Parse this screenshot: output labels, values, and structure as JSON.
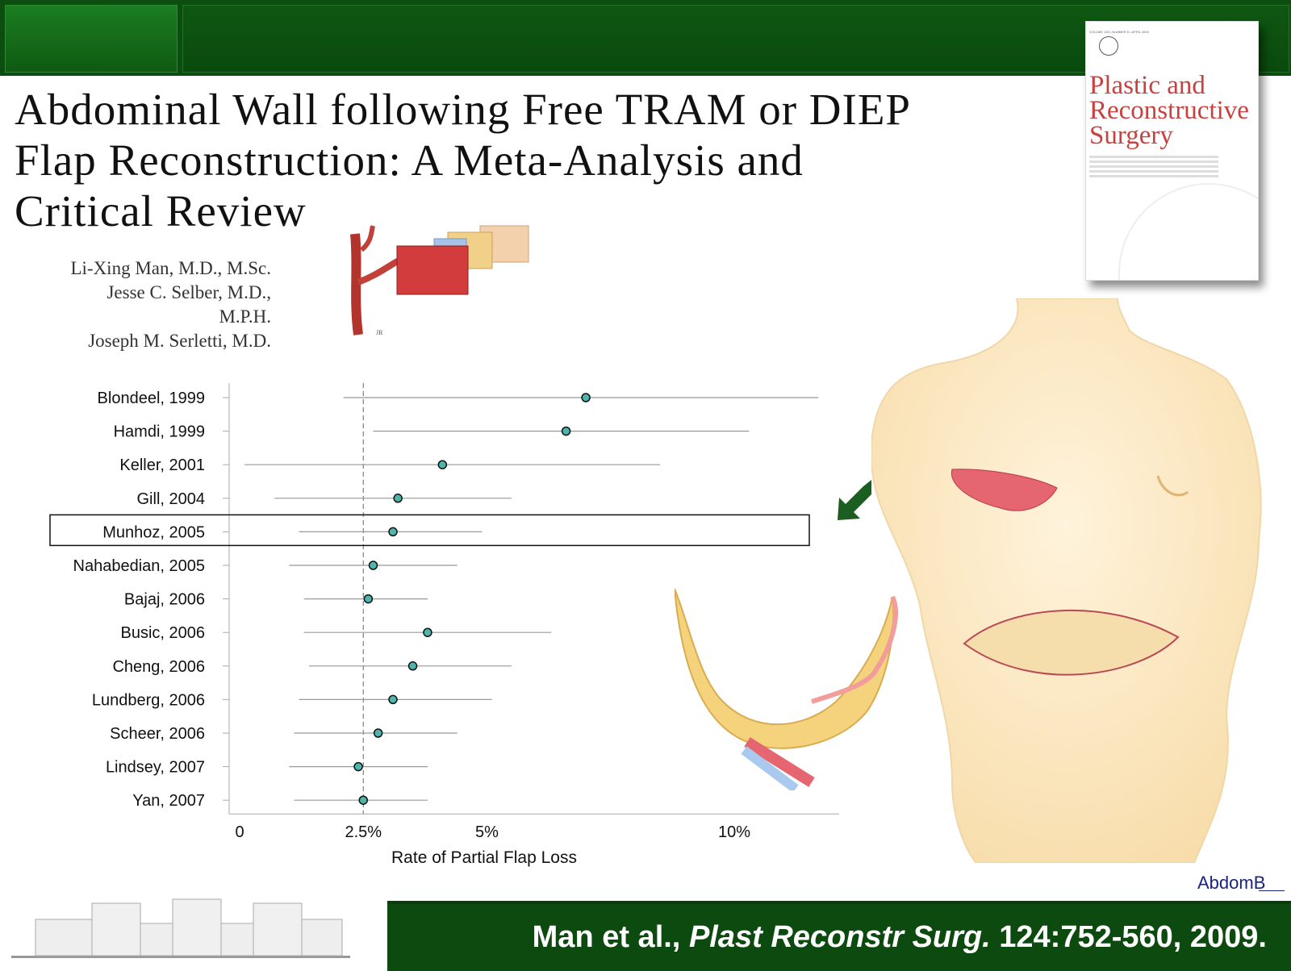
{
  "title": {
    "line1": "Abdominal Wall following Free TRAM or DIEP",
    "line2": "Flap Reconstruction: A Meta-Analysis and",
    "line3": "Critical Review"
  },
  "authors": [
    "Li-Xing Man, M.D., M.Sc.",
    "Jesse C. Selber, M.D.,",
    "M.P.H.",
    "Joseph M. Serletti, M.D."
  ],
  "journal_cover": {
    "name_lines": [
      "Plastic and",
      "Reconstructive",
      "Surgery"
    ],
    "meta": "VOLUME 105 • NUMBER 5 • APRIL 2000"
  },
  "chart_data": {
    "type": "scatter",
    "xlabel": "Rate of Partial Flap Loss",
    "xticks": [
      "0",
      "2.5%",
      "5%",
      "10%"
    ],
    "reference_line": 2.5,
    "highlighted_study": "Munhoz, 2005",
    "studies": [
      {
        "label": "Blondeel, 1999",
        "estimate": 7.0,
        "ci": [
          2.1,
          11.7
        ]
      },
      {
        "label": "Hamdi, 1999",
        "estimate": 6.6,
        "ci": [
          2.7,
          10.3
        ]
      },
      {
        "label": "Keller, 2001",
        "estimate": 4.1,
        "ci": [
          0.1,
          8.5
        ]
      },
      {
        "label": "Gill, 2004",
        "estimate": 3.2,
        "ci": [
          0.7,
          5.5
        ]
      },
      {
        "label": "Munhoz, 2005",
        "estimate": 3.1,
        "ci": [
          1.2,
          4.9
        ]
      },
      {
        "label": "Nahabedian, 2005",
        "estimate": 2.7,
        "ci": [
          1.0,
          4.4
        ]
      },
      {
        "label": "Bajaj, 2006",
        "estimate": 2.6,
        "ci": [
          1.3,
          3.8
        ]
      },
      {
        "label": "Busic, 2006",
        "estimate": 3.8,
        "ci": [
          1.3,
          6.3
        ]
      },
      {
        "label": "Cheng, 2006",
        "estimate": 3.5,
        "ci": [
          1.4,
          5.5
        ]
      },
      {
        "label": "Lundberg, 2006",
        "estimate": 3.1,
        "ci": [
          1.2,
          5.1
        ]
      },
      {
        "label": "Scheer, 2006",
        "estimate": 2.8,
        "ci": [
          1.1,
          4.4
        ]
      },
      {
        "label": "Lindsey, 2007",
        "estimate": 2.4,
        "ci": [
          1.0,
          3.8
        ]
      },
      {
        "label": "Yan, 2007",
        "estimate": 2.5,
        "ci": [
          1.1,
          3.8
        ]
      }
    ]
  },
  "side_label": "AbdomB",
  "citation": {
    "authors": "Man et al.,",
    "journal": "Plast Reconstr Surg.",
    "details": "124:752-560, 2009."
  },
  "colors": {
    "header_green": "#0d4d10",
    "journal_red": "#c9413f",
    "point_fill": "#4db6ac",
    "arrow_green": "#1b5e20"
  }
}
